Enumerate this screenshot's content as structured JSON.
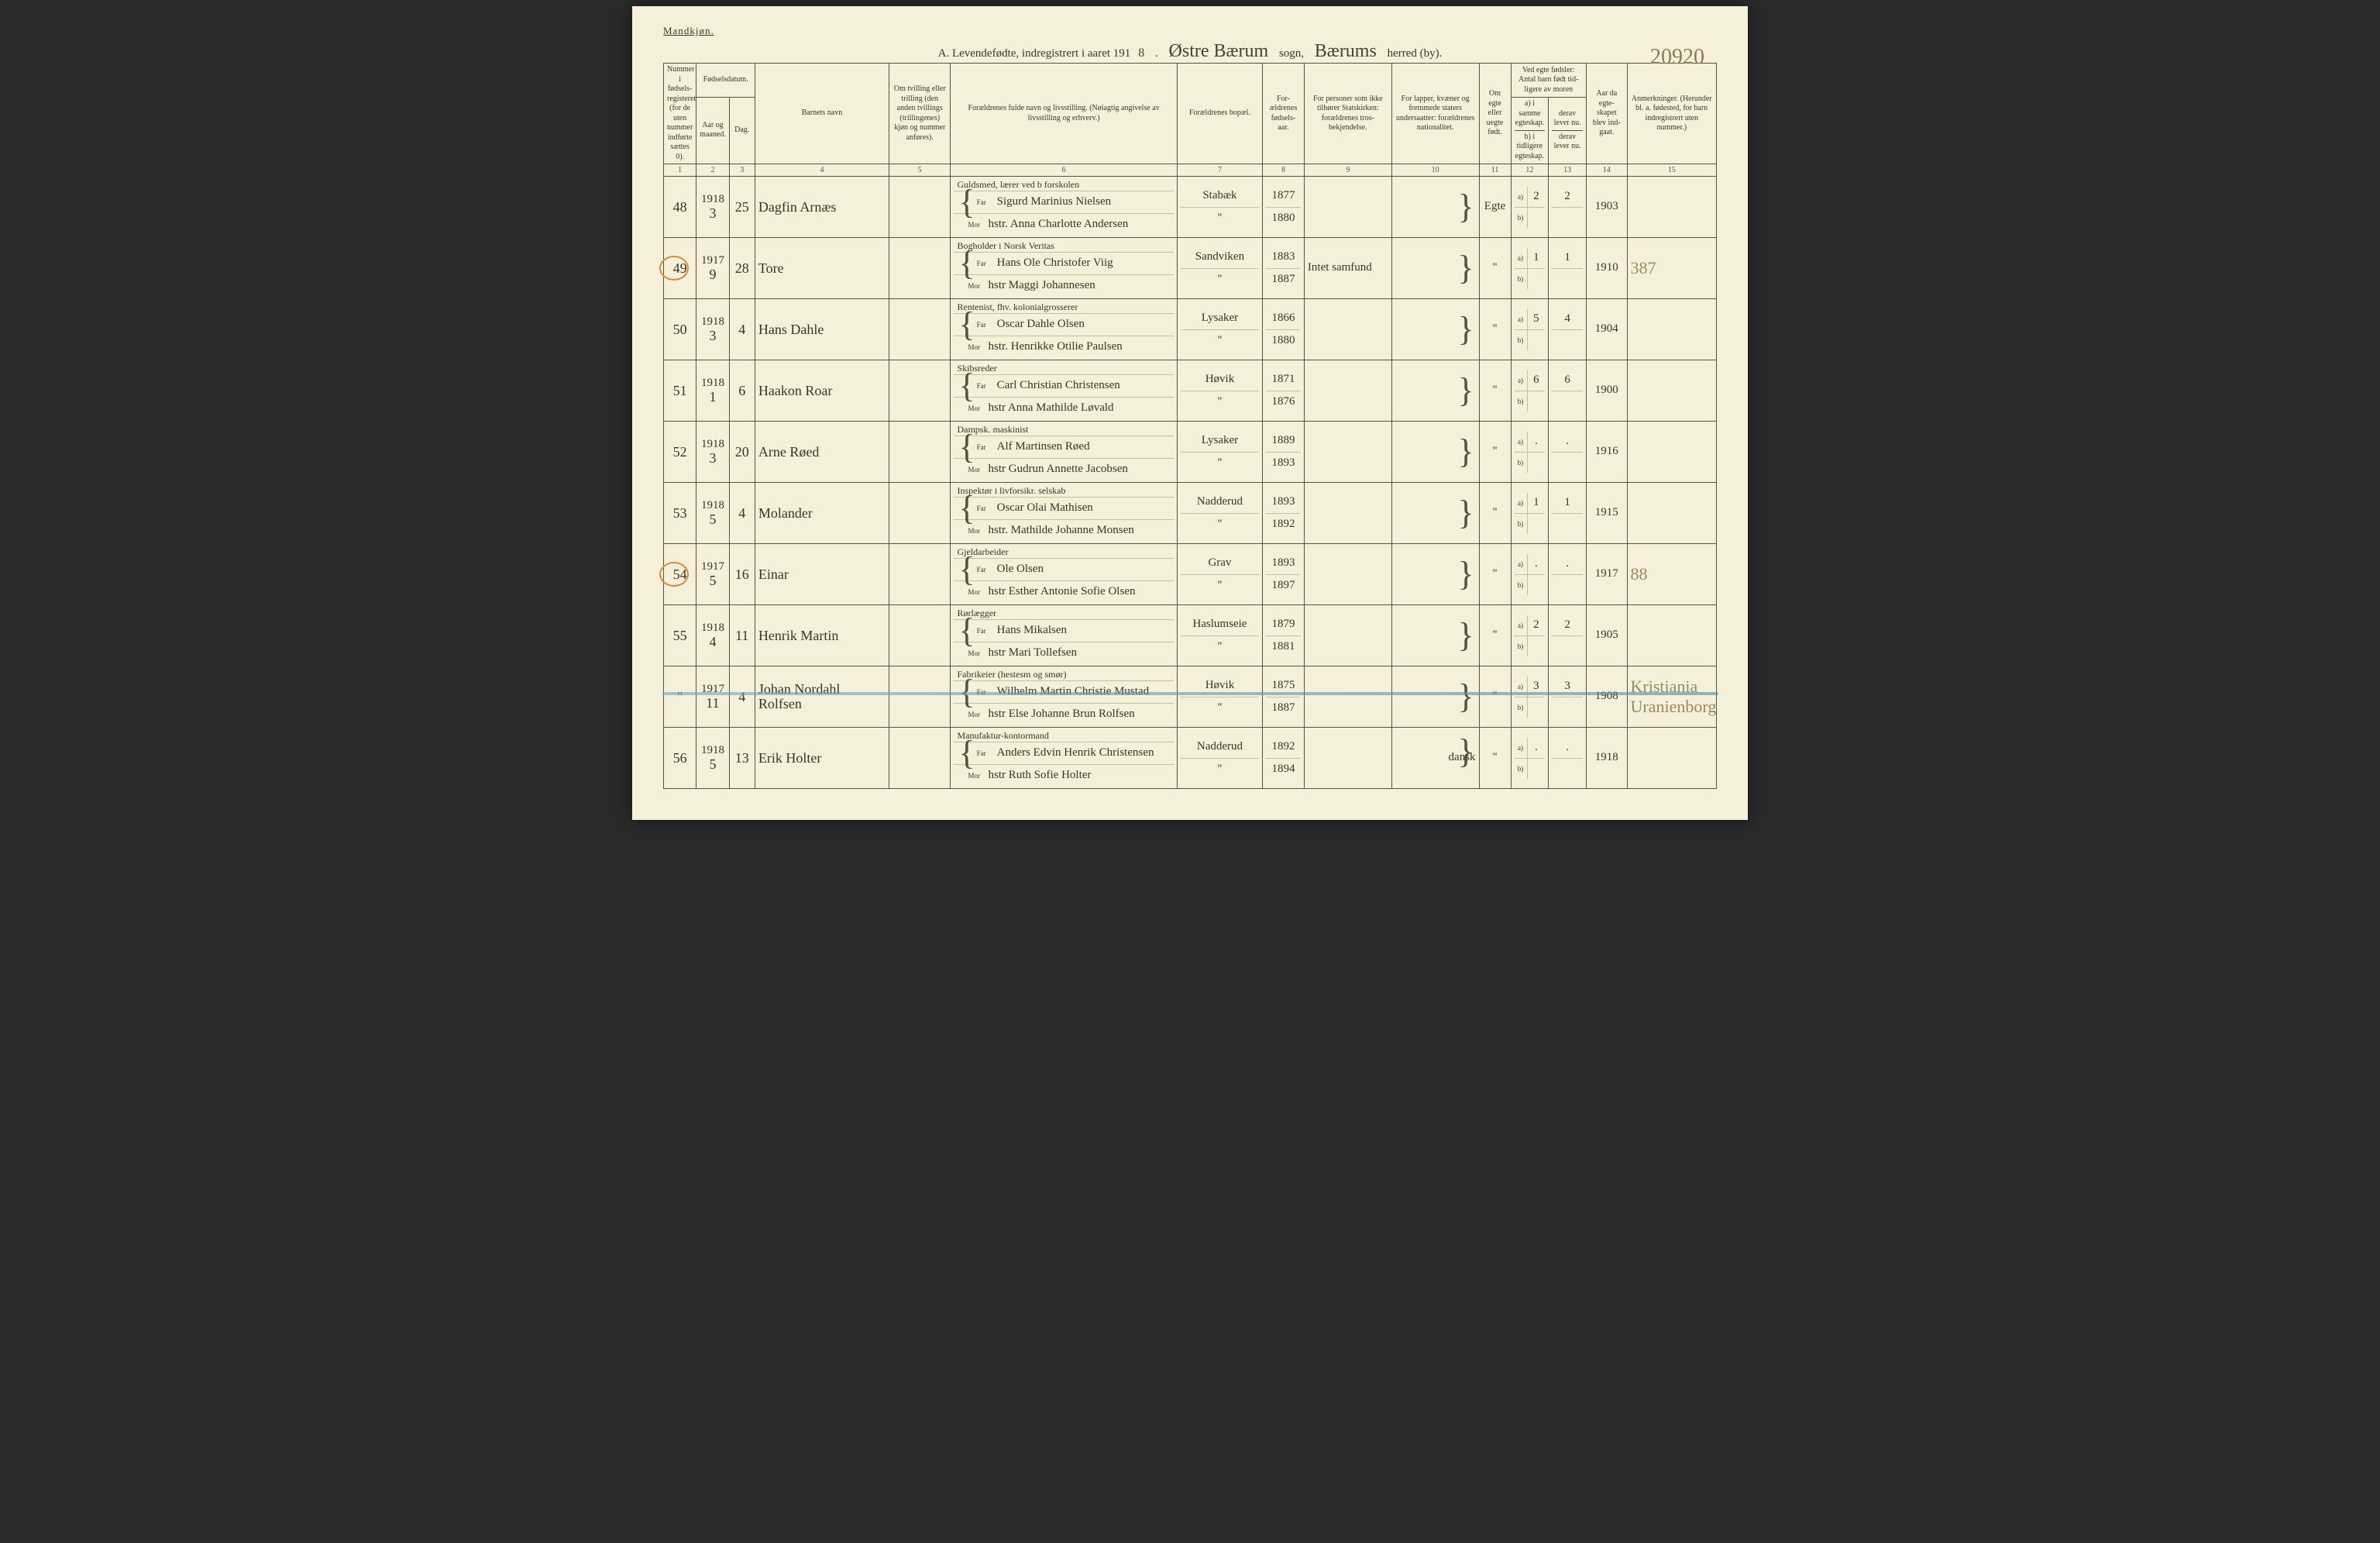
{
  "header": {
    "gender_label": "Mandkjøn.",
    "title_prefix": "A. Levendefødte, indregistrert i aaret 191",
    "title_year_suffix": "8",
    "sogn_hw": "Østre Bærum",
    "sogn_label": "sogn,",
    "herred_hw": "Bærums",
    "herred_label": "herred (by).",
    "corner_number": "20920"
  },
  "columns": {
    "c1": "Nummer i fødsels-registeret (for de uten nummer indførte sættes 0).",
    "c2_group": "Fødselsdatum.",
    "c2a": "Aar og maaned.",
    "c2b": "Dag.",
    "c4": "Barnets navn",
    "c5": "Om tvilling eller trilling (den anden tvillings (trillingenes) kjøn og nummer anføres).",
    "c6": "Forældrenes fulde navn og livsstilling. (Nøiagtig angivelse av livsstilling og erhverv.)",
    "c7": "Forældrenes bopæl.",
    "c8": "For-ældrenes fødsels-aar.",
    "c9": "For personer som ikke tilhører Statskirken: forældrenes tros-bekjendelse.",
    "c10": "For lapper, kvæner og fremmede staters undersaatter: forældrenes nationalitet.",
    "c11": "Om egte eller uegte født.",
    "c12_group": "Ved egte fødsler: Antal barn født tid-ligere av moren",
    "c12a": "a) i samme egteskap.",
    "c12b": "b) i tidligere egteskap.",
    "c13a": "derav lever nu.",
    "c13b": "derav lever nu.",
    "c14": "Aar da egte-skapet blev ind-gaat.",
    "c15": "Anmerkninger. (Herunder bl. a. fødested, for barn indregistrert uten nummer.)",
    "nums": [
      "1",
      "2",
      "3",
      "4",
      "5",
      "6",
      "7",
      "8",
      "9",
      "10",
      "11",
      "12",
      "13",
      "14",
      "15"
    ]
  },
  "rows": [
    {
      "no": "48",
      "yr_mo_top": "1918",
      "yr_mo": "3",
      "day": "25",
      "name": "Dagfin Arnæs",
      "occ": "Guldsmed, lærer ved b forskolen",
      "far": "Sigurd Marinius Nielsen",
      "mor": "hstr. Anna Charlotte Andersen",
      "bopal": "Stabæk",
      "bopal2": "\"",
      "fy1": "1877",
      "fy2": "1880",
      "rel": "",
      "nat": "",
      "legit": "Egte",
      "a": "2",
      "a2": "2",
      "b": "",
      "mar": "1903",
      "anm": "",
      "circled": false
    },
    {
      "no": "49",
      "yr_mo_top": "1917",
      "yr_mo": "9",
      "day": "28",
      "name": "Tore",
      "occ": "Bogholder i Norsk Veritas",
      "far": "Hans Ole Christofer Viig",
      "mor": "hstr Maggi Johannesen",
      "bopal": "Sandviken",
      "bopal2": "\"",
      "fy1": "1883",
      "fy2": "1887",
      "rel": "Intet samfund",
      "nat": "",
      "legit": "\"",
      "a": "1",
      "a2": "1",
      "b": "",
      "mar": "1910",
      "anm": "387",
      "circled": true
    },
    {
      "no": "50",
      "yr_mo_top": "1918",
      "yr_mo": "3",
      "day": "4",
      "name": "Hans Dahle",
      "occ": "Rentenist, fhv. kolonialgrosserer",
      "far": "Oscar Dahle Olsen",
      "mor": "hstr. Henrikke Otilie Paulsen",
      "bopal": "Lysaker",
      "bopal2": "\"",
      "fy1": "1866",
      "fy2": "1880",
      "rel": "",
      "nat": "",
      "legit": "\"",
      "a": "5",
      "a2": "4",
      "b": "",
      "mar": "1904",
      "anm": "",
      "circled": false
    },
    {
      "no": "51",
      "yr_mo_top": "1918",
      "yr_mo": "1",
      "day": "6",
      "name": "Haakon Roar",
      "occ": "Skibsreder",
      "far": "Carl Christian Christensen",
      "mor": "hstr Anna Mathilde Løvald",
      "bopal": "Høvik",
      "bopal2": "\"",
      "fy1": "1871",
      "fy2": "1876",
      "rel": "",
      "nat": "",
      "legit": "\"",
      "a": "6",
      "a2": "6",
      "b": "",
      "mar": "1900",
      "anm": "",
      "circled": false
    },
    {
      "no": "52",
      "yr_mo_top": "1918",
      "yr_mo": "3",
      "day": "20",
      "name": "Arne Røed",
      "occ": "Dampsk. maskinist",
      "far": "Alf Martinsen Røed",
      "mor": "hstr Gudrun Annette Jacobsen",
      "bopal": "Lysaker",
      "bopal2": "\"",
      "fy1": "1889",
      "fy2": "1893",
      "rel": "",
      "nat": "",
      "legit": "\"",
      "a": ".",
      "a2": ".",
      "b": "",
      "mar": "1916",
      "anm": "",
      "circled": false
    },
    {
      "no": "53",
      "yr_mo_top": "1918",
      "yr_mo": "5",
      "day": "4",
      "name": "Molander",
      "occ": "Inspektør i livforsikr. selskab",
      "far": "Oscar Olai Mathisen",
      "mor": "hstr. Mathilde Johanne Monsen",
      "bopal": "Nadderud",
      "bopal2": "\"",
      "fy1": "1893",
      "fy2": "1892",
      "rel": "",
      "nat": "",
      "legit": "\"",
      "a": "1",
      "a2": "1",
      "b": "",
      "mar": "1915",
      "anm": "",
      "circled": false
    },
    {
      "no": "54",
      "yr_mo_top": "1917",
      "yr_mo": "5",
      "day": "16",
      "name": "Einar",
      "occ": "Gjeldarbeider",
      "far": "Ole Olsen",
      "mor": "hstr Esther Antonie Sofie Olsen",
      "bopal": "Grav",
      "bopal2": "\"",
      "fy1": "1893",
      "fy2": "1897",
      "rel": "",
      "nat": "",
      "legit": "\"",
      "a": ".",
      "a2": ".",
      "b": "",
      "mar": "1917",
      "anm": "88",
      "circled": true
    },
    {
      "no": "55",
      "yr_mo_top": "1918",
      "yr_mo": "4",
      "day": "11",
      "name": "Henrik Martin",
      "occ": "Rørlægger",
      "far": "Hans Mikalsen",
      "mor": "hstr Mari Tollefsen",
      "bopal": "Haslumseie",
      "bopal2": "\"",
      "fy1": "1879",
      "fy2": "1881",
      "rel": "",
      "nat": "",
      "legit": "\"",
      "a": "2",
      "a2": "2",
      "b": "",
      "mar": "1905",
      "anm": "",
      "circled": false
    },
    {
      "no": "\"",
      "yr_mo_top": "1917",
      "yr_mo": "11",
      "day": "4",
      "name": "Johan Nordahl Rolfsen",
      "occ": "Fabrikeier (hestesm og smør)",
      "far": "Wilhelm Martin Christie Mustad",
      "mor": "hstr Else Johanne Brun Rolfsen",
      "bopal": "Høvik",
      "bopal2": "\"",
      "fy1": "1875",
      "fy2": "1887",
      "rel": "",
      "nat": "",
      "legit": "\"",
      "a": "3",
      "a2": "3",
      "b": "",
      "mar": "1908",
      "anm": "Kristiania  Uranienborg",
      "circled": false,
      "struck": true
    },
    {
      "no": "56",
      "yr_mo_top": "1918",
      "yr_mo": "5",
      "day": "13",
      "name": "Erik Holter",
      "occ": "Manufaktur-kontormand",
      "far": "Anders Edvin Henrik Christensen",
      "mor": "hstr Ruth Sofie Holter",
      "bopal": "Nadderud",
      "bopal2": "\"",
      "fy1": "1892",
      "fy2": "1894",
      "rel": "",
      "nat": "dansk",
      "legit": "\"",
      "a": ".",
      "a2": ".",
      "b": "",
      "mar": "1918",
      "anm": "",
      "circled": false
    }
  ],
  "colors": {
    "paper": "#f5f0da",
    "ink": "#3a352a",
    "rule": "#5a5040",
    "circle": "#d98a3a",
    "blue": "#6aa8c4",
    "faded_hw": "#9a8a60"
  },
  "col_widths_pct": [
    3.3,
    3.3,
    2.6,
    13.5,
    6.2,
    22.8,
    8.6,
    4.2,
    8.8,
    8.8,
    3.2,
    3.8,
    3.8,
    4.1,
    9.0
  ]
}
